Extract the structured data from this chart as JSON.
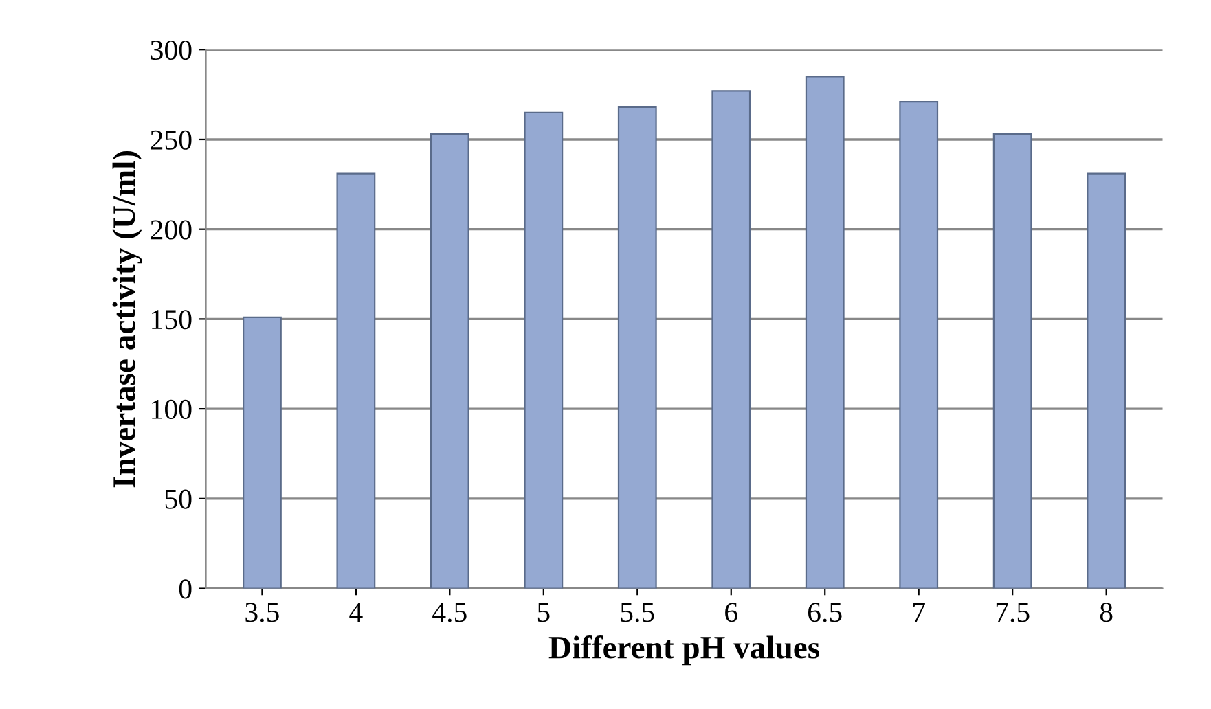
{
  "chart_data": {
    "type": "bar",
    "xlabel": "Different pH values",
    "ylabel": "Invertase activity (U/ml)",
    "categories": [
      "3.5",
      "4",
      "4.5",
      "5",
      "5.5",
      "6",
      "6.5",
      "7",
      "7.5",
      "8"
    ],
    "values": [
      151,
      231,
      253,
      265,
      268,
      277,
      285,
      271,
      253,
      231
    ],
    "color": "#95a9d2",
    "ylim": [
      0,
      300
    ],
    "yticks": [
      0,
      50,
      100,
      150,
      200,
      250,
      300
    ],
    "grid": "y"
  }
}
